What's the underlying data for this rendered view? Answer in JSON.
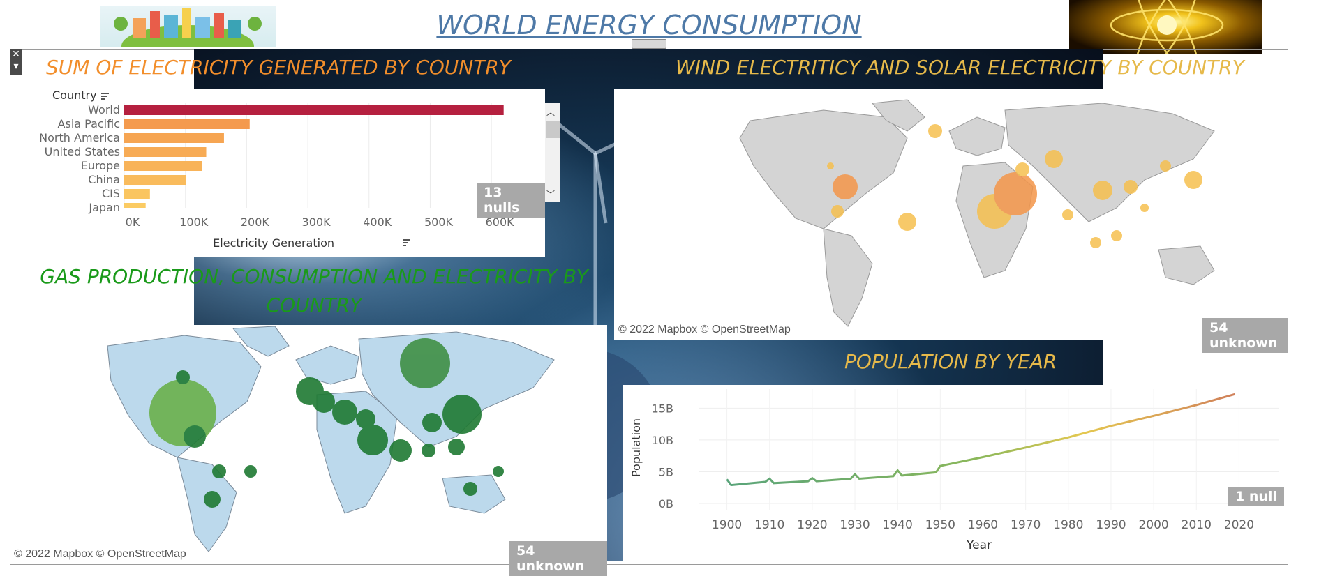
{
  "page": {
    "title": "WORLD ENERGY CONSUMPTION"
  },
  "electricity": {
    "title": "SUM OF ELECTRICITY GENERATED BY COUNTRY",
    "nulls_badge": "13 nulls"
  },
  "wind_solar": {
    "title": "WIND ELECTRITICY AND SOLAR ELECTRICITY BY COUNTRY",
    "credit": "© 2022 Mapbox © OpenStreetMap",
    "unknown_badge": "54 unknown"
  },
  "gas": {
    "title": "GAS PRODUCTION, CONSUMPTION AND ELECTRICITY BY COUNTRY",
    "credit": "© 2022 Mapbox © OpenStreetMap",
    "unknown_badge": "54 unknown"
  },
  "population": {
    "title": "POPULATION BY YEAR",
    "nulls_badge": "1 null"
  },
  "colors": {
    "title_blue": "#4e79a7",
    "orange": "#f28e2b",
    "gold": "#e6b94a",
    "green_title": "#1a9a1a",
    "world_bar": "#b5203f",
    "map_land_gray": "#d4d4d4",
    "map_land_blue": "#bcd9ec",
    "bubble_green": "#2e7d32"
  },
  "chart_data": [
    {
      "type": "bar",
      "orientation": "horizontal",
      "ylabel": "Country",
      "xlabel": "Electricity Generation",
      "categories": [
        "World",
        "Asia Pacific",
        "North America",
        "United States",
        "Europe",
        "China",
        "CIS",
        "Japan"
      ],
      "values": [
        620000,
        205000,
        163000,
        134000,
        127000,
        101000,
        42000,
        35000
      ],
      "xlim": [
        0,
        650000
      ],
      "xticks": [
        0,
        100000,
        200000,
        300000,
        400000,
        500000,
        600000
      ],
      "xtick_labels": [
        "0K",
        "100K",
        "200K",
        "300K",
        "400K",
        "500K",
        "600K"
      ]
    },
    {
      "type": "line",
      "xlabel": "Year",
      "ylabel": "Population",
      "x": [
        1900,
        1901,
        1909,
        1910,
        1911,
        1919,
        1920,
        1921,
        1929,
        1930,
        1931,
        1939,
        1940,
        1941,
        1949,
        1950,
        1960,
        1970,
        1980,
        1990,
        2000,
        2010,
        2019
      ],
      "y": [
        3.8,
        2.9,
        3.4,
        3.9,
        3.2,
        3.5,
        4.0,
        3.5,
        3.9,
        4.6,
        3.9,
        4.3,
        5.2,
        4.4,
        4.9,
        5.9,
        7.3,
        8.8,
        10.4,
        12.2,
        13.8,
        15.5,
        17.2
      ],
      "ylim": [
        0,
        18
      ],
      "yticks": [
        0,
        5,
        10,
        15
      ],
      "ytick_labels": [
        "0B",
        "5B",
        "10B",
        "15B"
      ],
      "xticks": [
        1900,
        1910,
        1920,
        1930,
        1940,
        1950,
        1960,
        1970,
        1980,
        1990,
        2000,
        2010,
        2020
      ],
      "xtick_labels": [
        "1900",
        "1910",
        "1920",
        "1930",
        "1940",
        "1950",
        "1960",
        "1970",
        "1980",
        "1990",
        "2000",
        "2010",
        "2020"
      ]
    }
  ]
}
